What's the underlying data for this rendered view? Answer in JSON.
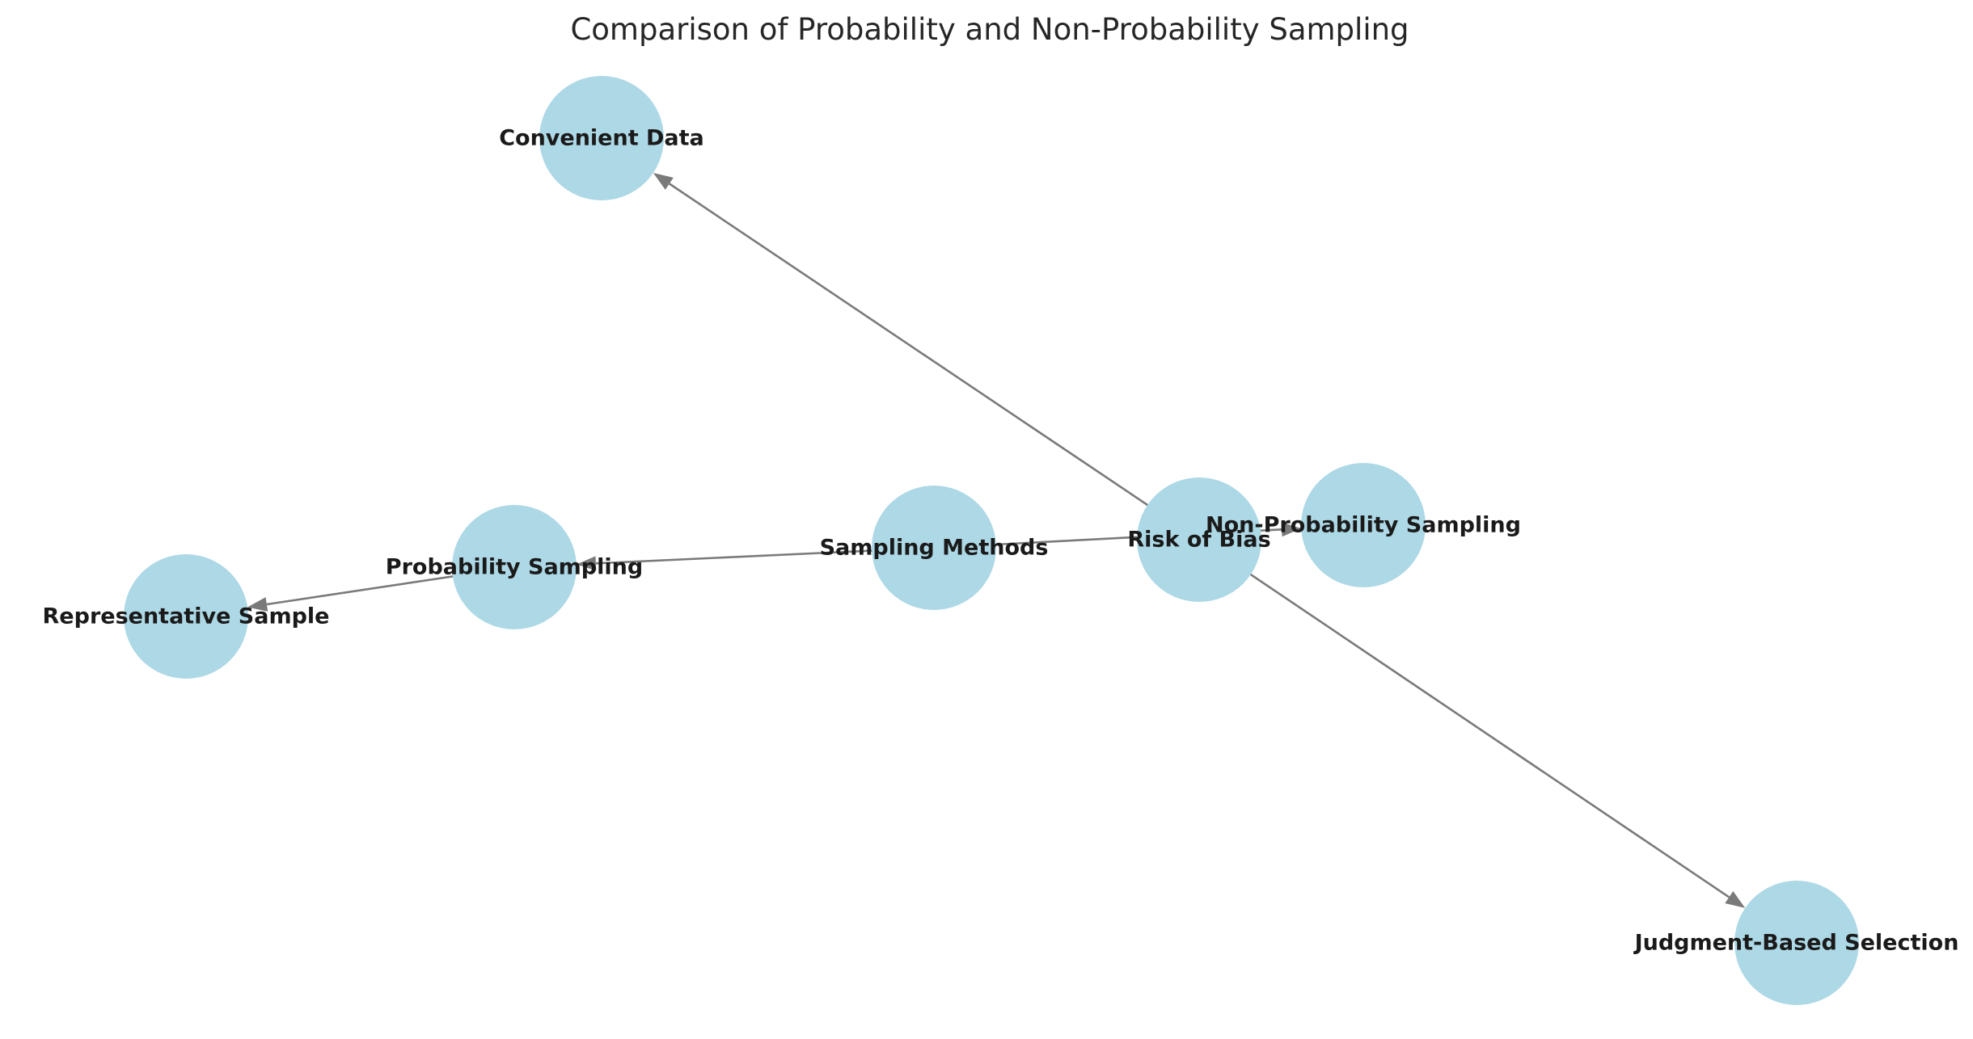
{
  "title": "Comparison of Probability and Non-Probability Sampling",
  "colors": {
    "node_fill": "#add8e6",
    "edge": "#7a7a7a",
    "label": "#1a1a1a",
    "title": "#262626"
  },
  "nodes": [
    {
      "id": "sampling",
      "label": "Sampling Methods"
    },
    {
      "id": "prob",
      "label": "Probability Sampling"
    },
    {
      "id": "rep",
      "label": "Representative Sample"
    },
    {
      "id": "risk",
      "label": "Risk of Bias"
    },
    {
      "id": "nonprob",
      "label": "Non-Probability Sampling"
    },
    {
      "id": "conv",
      "label": "Convenient Data"
    },
    {
      "id": "judg",
      "label": "Judgment-Based Selection"
    }
  ],
  "edges": [
    {
      "from": "sampling",
      "to": "prob"
    },
    {
      "from": "prob",
      "to": "rep"
    },
    {
      "from": "sampling",
      "to": "nonprob"
    },
    {
      "from": "risk",
      "to": "conv"
    },
    {
      "from": "risk",
      "to": "judg"
    }
  ]
}
